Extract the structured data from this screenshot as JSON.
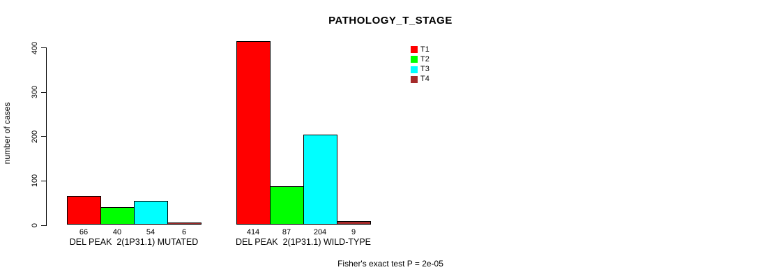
{
  "chart_data": {
    "type": "bar",
    "title": "PATHOLOGY_T_STAGE",
    "ylabel": "number of cases",
    "xlabel": "",
    "yticks": [
      0,
      100,
      200,
      300,
      400
    ],
    "ylim": [
      0,
      420
    ],
    "grid": false,
    "legend_position": "top-right",
    "bar_value_labels": true,
    "categories": [
      "DEL PEAK  2(1P31.1) MUTATED",
      "DEL PEAK  2(1P31.1) WILD-TYPE"
    ],
    "series": [
      {
        "name": "T1",
        "color": "#FF0000",
        "values": [
          66,
          414
        ]
      },
      {
        "name": "T2",
        "color": "#00FF00",
        "values": [
          40,
          87
        ]
      },
      {
        "name": "T3",
        "color": "#00FFFF",
        "values": [
          54,
          204
        ]
      },
      {
        "name": "T4",
        "color": "#A52A2A",
        "values": [
          6,
          9
        ]
      }
    ],
    "footnote": "Fisher's exact test P = 2e-05"
  }
}
